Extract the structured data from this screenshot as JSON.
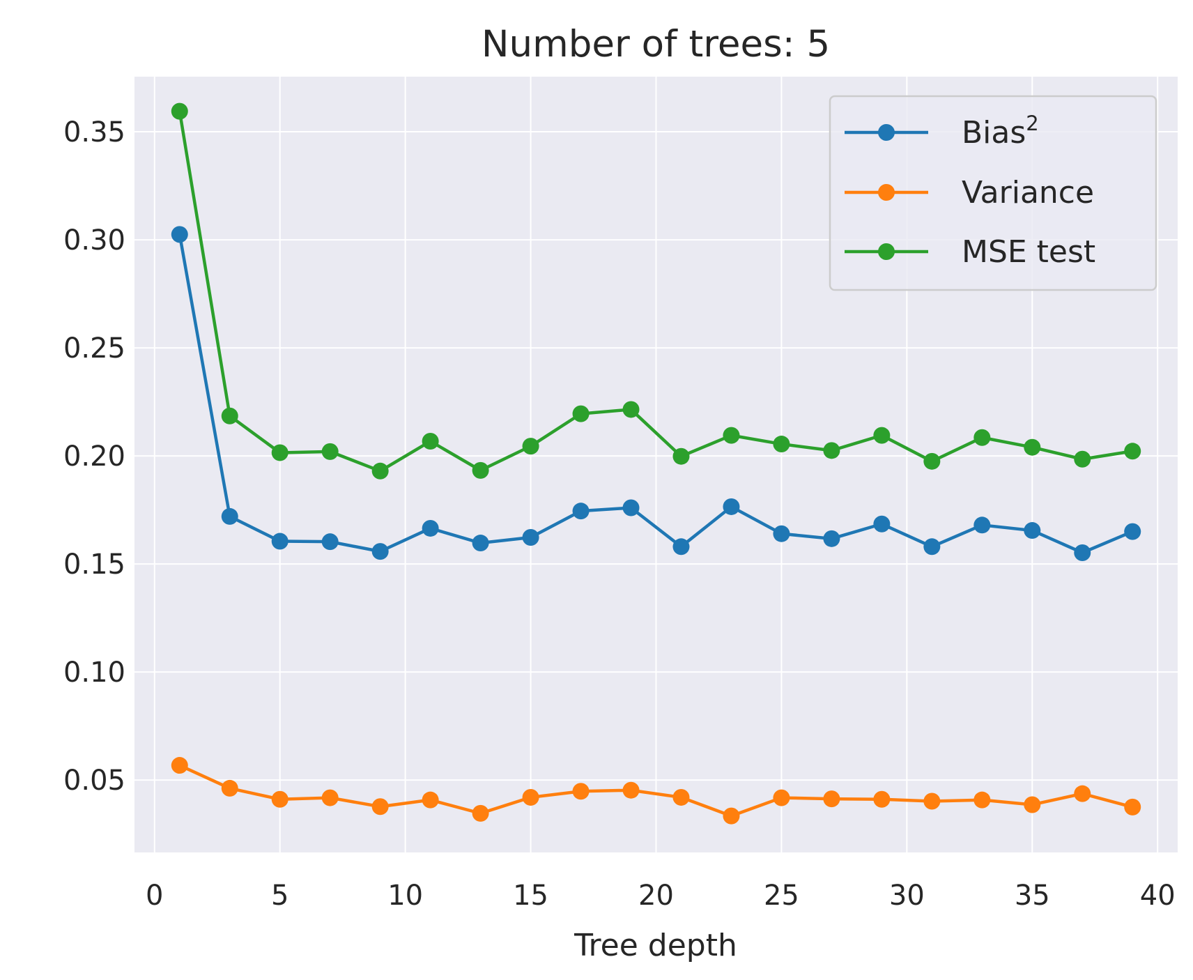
{
  "chart_data": {
    "type": "line",
    "title": "Number of trees: 5",
    "xlabel": "Tree depth",
    "ylabel": "",
    "xlim": [
      -0.8,
      40.8
    ],
    "ylim": [
      0.0165,
      0.3755
    ],
    "xticks": [
      0,
      5,
      10,
      15,
      20,
      25,
      30,
      35,
      40
    ],
    "xtick_labels": [
      "0",
      "5",
      "10",
      "15",
      "20",
      "25",
      "30",
      "35",
      "40"
    ],
    "yticks": [
      0.05,
      0.1,
      0.15,
      0.2,
      0.25,
      0.3,
      0.35
    ],
    "ytick_labels": [
      "0.05",
      "0.10",
      "0.15",
      "0.20",
      "0.25",
      "0.30",
      "0.35"
    ],
    "grid": true,
    "legend_position": "top-right",
    "x": [
      1,
      3,
      5,
      7,
      9,
      11,
      13,
      15,
      17,
      19,
      21,
      23,
      25,
      27,
      29,
      31,
      33,
      35,
      37,
      39
    ],
    "series": [
      {
        "name": "Bias",
        "name_superscript": "2",
        "color": "#1f77b4",
        "values": [
          0.3025,
          0.172,
          0.1605,
          0.1603,
          0.1558,
          0.1665,
          0.1597,
          0.1623,
          0.1745,
          0.176,
          0.158,
          0.1765,
          0.164,
          0.1617,
          0.1685,
          0.158,
          0.168,
          0.1655,
          0.1552,
          0.165
        ]
      },
      {
        "name": "Variance",
        "color": "#ff7f0e",
        "values": [
          0.0568,
          0.0462,
          0.0411,
          0.0418,
          0.0377,
          0.0408,
          0.0346,
          0.042,
          0.0448,
          0.0453,
          0.042,
          0.0334,
          0.0418,
          0.0413,
          0.0411,
          0.0402,
          0.0408,
          0.0386,
          0.0437,
          0.0375
        ]
      },
      {
        "name": "MSE test",
        "color": "#2ca02c",
        "values": [
          0.3595,
          0.2185,
          0.2015,
          0.202,
          0.193,
          0.2068,
          0.1933,
          0.2045,
          0.2195,
          0.2215,
          0.1998,
          0.2095,
          0.2055,
          0.2025,
          0.2095,
          0.1975,
          0.2085,
          0.204,
          0.1985,
          0.2022
        ]
      }
    ]
  }
}
